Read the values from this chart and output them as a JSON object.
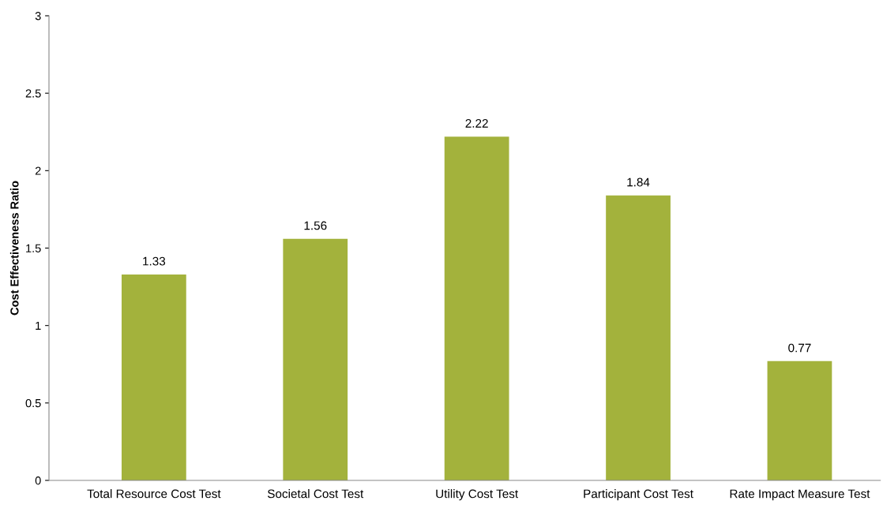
{
  "chart_data": {
    "type": "bar",
    "ylabel": "Cost Effectiveness Ratio",
    "categories": [
      "Total Resource Cost Test",
      "Societal Cost Test",
      "Utility Cost Test",
      "Participant Cost Test",
      "Rate Impact Measure Test"
    ],
    "values": [
      1.33,
      1.56,
      2.22,
      1.84,
      0.77
    ],
    "color": "#a3b23c",
    "ylim": [
      0,
      3
    ],
    "yticks": [
      0,
      0.5,
      1,
      1.5,
      2,
      2.5,
      3
    ],
    "data_labels": true,
    "grid": false,
    "legend": false
  }
}
